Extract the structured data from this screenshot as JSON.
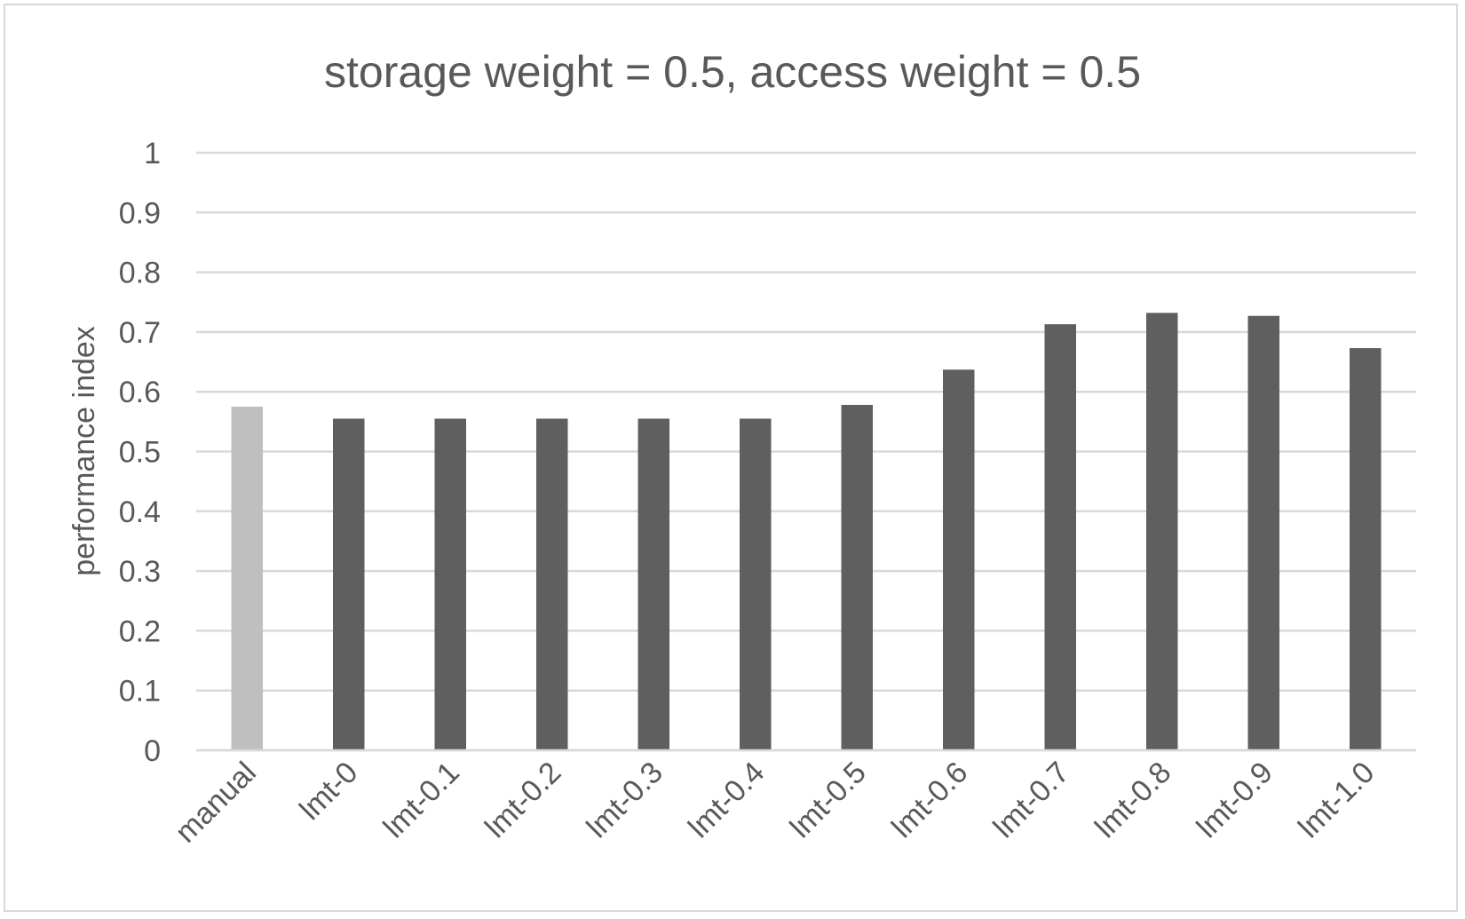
{
  "chart_data": {
    "type": "bar",
    "title": "storage weight = 0.5, access weight = 0.5",
    "xlabel": "",
    "ylabel": "performance index",
    "ylim": [
      0,
      1
    ],
    "yticks": [
      "0",
      "0.1",
      "0.2",
      "0.3",
      "0.4",
      "0.5",
      "0.6",
      "0.7",
      "0.8",
      "0.9",
      "1"
    ],
    "grid": true,
    "legend": "none",
    "categories": [
      "manual",
      "lmt-0",
      "lmt-0.1",
      "lmt-0.2",
      "lmt-0.3",
      "lmt-0.4",
      "lmt-0.5",
      "lmt-0.6",
      "lmt-0.7",
      "lmt-0.8",
      "lmt-0.9",
      "lmt-1.0"
    ],
    "values": [
      0.575,
      0.555,
      0.555,
      0.555,
      0.555,
      0.555,
      0.578,
      0.637,
      0.713,
      0.732,
      0.727,
      0.673
    ],
    "bar_colors": [
      "#bfbfbf",
      "#5f5f5f",
      "#5f5f5f",
      "#5f5f5f",
      "#5f5f5f",
      "#5f5f5f",
      "#5f5f5f",
      "#5f5f5f",
      "#5f5f5f",
      "#5f5f5f",
      "#5f5f5f",
      "#5f5f5f"
    ],
    "colors": {
      "text": "#595959",
      "grid": "#d9d9d9",
      "axis": "#d9d9d9"
    }
  }
}
